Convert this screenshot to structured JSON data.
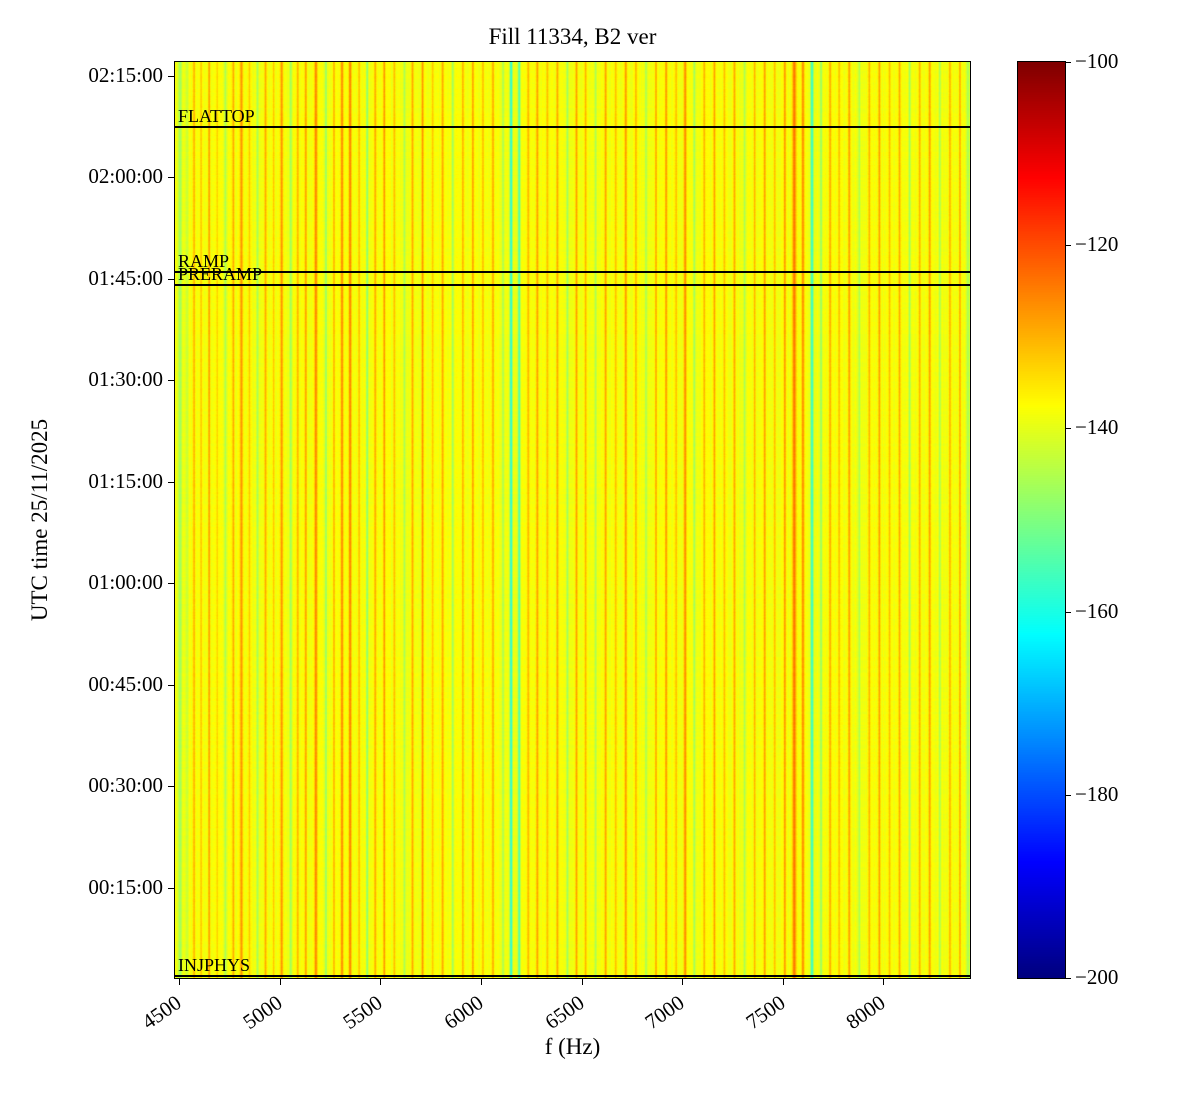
{
  "chart_data": {
    "type": "heatmap",
    "title": "Fill 11334, B2 ver",
    "xlabel": "f (Hz)",
    "ylabel": "UTC time 25/11/2025",
    "x_range_hz": [
      4480,
      8430
    ],
    "x_ticks": [
      4500,
      5000,
      5500,
      6000,
      6500,
      7000,
      7500,
      8000
    ],
    "y_range_time": [
      "00:01:40",
      "02:17:00"
    ],
    "y_ticks": [
      "00:15:00",
      "00:30:00",
      "00:45:00",
      "01:00:00",
      "01:15:00",
      "01:30:00",
      "01:45:00",
      "02:00:00",
      "02:15:00"
    ],
    "colormap": "jet",
    "color_scale_db": {
      "min": -200,
      "max": -100
    },
    "colorbar_ticks": [
      -100,
      -120,
      -140,
      -160,
      -180,
      -200
    ],
    "background_level_db": -138.5,
    "stripes": [
      [
        4505,
        -147,
        7
      ],
      [
        4540,
        -143,
        5
      ],
      [
        4575,
        -130,
        4
      ],
      [
        4610,
        -132,
        4
      ],
      [
        4650,
        -128,
        4
      ],
      [
        4690,
        -133,
        4
      ],
      [
        4730,
        -146,
        4
      ],
      [
        4770,
        -129,
        4
      ],
      [
        4810,
        -127,
        5
      ],
      [
        4850,
        -132,
        4
      ],
      [
        4890,
        -146,
        4
      ],
      [
        4930,
        -129,
        4
      ],
      [
        4970,
        -132,
        4
      ],
      [
        5010,
        -127,
        5
      ],
      [
        5055,
        -147,
        4
      ],
      [
        5090,
        -130,
        4
      ],
      [
        5130,
        -128,
        4
      ],
      [
        5180,
        -125,
        5
      ],
      [
        5230,
        -148,
        4
      ],
      [
        5270,
        -130,
        4
      ],
      [
        5310,
        -126,
        5
      ],
      [
        5350,
        -125,
        5
      ],
      [
        5395,
        -131,
        4
      ],
      [
        5435,
        -149,
        4
      ],
      [
        5475,
        -129,
        4
      ],
      [
        5520,
        -127,
        4
      ],
      [
        5570,
        -131,
        4
      ],
      [
        5620,
        -146,
        4
      ],
      [
        5660,
        -129,
        4
      ],
      [
        5710,
        -127,
        4
      ],
      [
        5760,
        -132,
        4
      ],
      [
        5810,
        -129,
        4
      ],
      [
        5860,
        -147,
        4
      ],
      [
        5910,
        -130,
        4
      ],
      [
        5960,
        -128,
        4
      ],
      [
        6010,
        -131,
        4
      ],
      [
        6060,
        -129,
        4
      ],
      [
        6110,
        -146,
        4
      ],
      [
        6150,
        -159,
        5
      ],
      [
        6190,
        -156,
        4
      ],
      [
        6235,
        -130,
        4
      ],
      [
        6280,
        -128,
        4
      ],
      [
        6330,
        -131,
        4
      ],
      [
        6380,
        -129,
        4
      ],
      [
        6430,
        -147,
        4
      ],
      [
        6475,
        -128,
        4
      ],
      [
        6520,
        -130,
        4
      ],
      [
        6570,
        -146,
        4
      ],
      [
        6620,
        -128,
        4
      ],
      [
        6670,
        -131,
        4
      ],
      [
        6720,
        -127,
        4
      ],
      [
        6770,
        -130,
        4
      ],
      [
        6820,
        -146,
        4
      ],
      [
        6870,
        -129,
        4
      ],
      [
        6920,
        -127,
        4
      ],
      [
        6970,
        -131,
        4
      ],
      [
        7015,
        -126,
        5
      ],
      [
        7060,
        -147,
        4
      ],
      [
        7110,
        -130,
        4
      ],
      [
        7160,
        -128,
        4
      ],
      [
        7210,
        -131,
        4
      ],
      [
        7260,
        -129,
        4
      ],
      [
        7310,
        -146,
        4
      ],
      [
        7360,
        -130,
        4
      ],
      [
        7410,
        -128,
        4
      ],
      [
        7460,
        -131,
        4
      ],
      [
        7510,
        -127,
        4
      ],
      [
        7557,
        -124,
        7
      ],
      [
        7600,
        -126,
        5
      ],
      [
        7645,
        -158,
        5
      ],
      [
        7690,
        -148,
        4
      ],
      [
        7735,
        -129,
        4
      ],
      [
        7780,
        -131,
        4
      ],
      [
        7830,
        -128,
        4
      ],
      [
        7880,
        -146,
        4
      ],
      [
        7930,
        -130,
        4
      ],
      [
        7980,
        -128,
        4
      ],
      [
        8030,
        -131,
        4
      ],
      [
        8080,
        -129,
        4
      ],
      [
        8130,
        -147,
        4
      ],
      [
        8180,
        -130,
        4
      ],
      [
        8230,
        -128,
        4
      ],
      [
        8280,
        -146,
        4
      ],
      [
        8330,
        -130,
        4
      ],
      [
        8380,
        -129,
        4
      ],
      [
        8420,
        -146,
        6
      ]
    ],
    "annotations": [
      {
        "label": "FLATTOP",
        "time": "02:07:20"
      },
      {
        "label": "RAMP",
        "time": "01:46:00"
      },
      {
        "label": "PRERAMP",
        "time": "01:44:00"
      },
      {
        "label": "INJPHYS",
        "time": "00:02:00"
      }
    ]
  }
}
